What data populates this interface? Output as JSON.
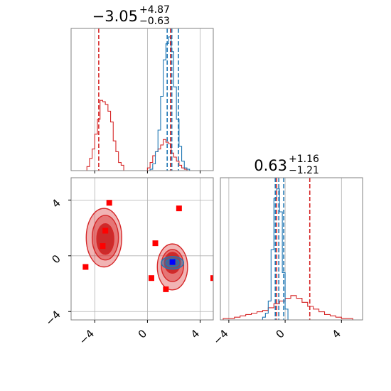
{
  "chart_data": {
    "type": "corner",
    "colors": {
      "blue": "#1f77b4",
      "red": "#d62728",
      "marker_red": "#ff0000",
      "marker_blue": "#0000ff",
      "grid": "#b0b0b0",
      "frame": "#808080"
    },
    "param1": {
      "title": {
        "value": "−3.05",
        "sup": "+4.87",
        "sub": "−0.63"
      },
      "range": [
        -5.8,
        5.0
      ],
      "ticks": [
        -4,
        0,
        4
      ],
      "tick_labels": [
        "−4",
        "0",
        "4"
      ],
      "blue_hist": {
        "edges": [
          0.2,
          0.4,
          0.6,
          0.8,
          1.0,
          1.2,
          1.4,
          1.6,
          1.8,
          2.0,
          2.2,
          2.4,
          2.6,
          2.8,
          3.0,
          3.2
        ],
        "counts": [
          0.01,
          0.05,
          0.14,
          0.3,
          0.55,
          0.82,
          0.94,
          0.99,
          0.88,
          0.62,
          0.38,
          0.18,
          0.07,
          0.02,
          0.01
        ]
      },
      "red_hist": {
        "edges": [
          -4.6,
          -4.4,
          -4.2,
          -4.0,
          -3.8,
          -3.6,
          -3.4,
          -3.2,
          -3.0,
          -2.8,
          -2.6,
          -2.4,
          -2.2,
          -2.0,
          -1.8,
          0.0,
          0.2,
          0.4,
          0.6,
          0.8,
          1.0,
          1.2,
          1.4,
          1.6,
          1.8,
          2.0,
          2.2,
          2.4,
          2.6,
          2.8,
          3.0,
          3.2
        ],
        "counts": [
          0.03,
          0.09,
          0.16,
          0.27,
          0.38,
          0.52,
          0.51,
          0.49,
          0.44,
          0.36,
          0.22,
          0.14,
          0.06,
          0.04,
          0.0,
          0.02,
          0.06,
          0.11,
          0.14,
          0.16,
          0.19,
          0.23,
          0.21,
          0.2,
          0.13,
          0.1,
          0.07,
          0.04,
          0.02,
          0.01,
          0.0
        ]
      },
      "blue_quantiles": [
        1.5,
        1.85,
        2.35
      ],
      "red_quantiles": [
        -3.7,
        1.75
      ]
    },
    "param2": {
      "title": {
        "value": "0.63",
        "sup": "+1.16",
        "sub": "−1.21"
      },
      "range": [
        -4.6,
        5.5
      ],
      "ticks": [
        -4,
        0,
        4
      ],
      "tick_labels": [
        "−4",
        "0",
        "4"
      ],
      "blue_hist": {
        "edges": [
          -1.6,
          -1.4,
          -1.2,
          -1.0,
          -0.8,
          -0.6,
          -0.4,
          -0.2,
          0.0,
          0.2
        ],
        "counts": [
          0.02,
          0.05,
          0.14,
          0.52,
          0.9,
          0.97,
          0.8,
          0.35,
          0.08
        ]
      },
      "red_hist": {
        "edges": [
          -4.4,
          -4.0,
          -3.6,
          -3.2,
          -2.8,
          -2.4,
          -2.0,
          -1.6,
          -1.2,
          -0.8,
          -0.4,
          0.0,
          0.4,
          0.8,
          1.2,
          1.6,
          2.0,
          2.4,
          2.8,
          3.2,
          3.6,
          4.0,
          4.4,
          4.8
        ],
        "counts": [
          0.01,
          0.01,
          0.02,
          0.03,
          0.04,
          0.05,
          0.06,
          0.07,
          0.09,
          0.12,
          0.14,
          0.16,
          0.18,
          0.16,
          0.13,
          0.1,
          0.08,
          0.06,
          0.04,
          0.03,
          0.02,
          0.01,
          0.01
        ]
      },
      "blue_quantiles": [
        -0.7,
        -0.45,
        -0.1
      ],
      "red_quantiles": [
        -0.6,
        1.75
      ]
    },
    "joint": {
      "xrange": [
        -5.8,
        5.0
      ],
      "yrange": [
        -4.6,
        5.6
      ],
      "ticks": [
        -4,
        0,
        4
      ],
      "tick_labels": [
        "−4",
        "0",
        "4"
      ],
      "red_contours": [
        {
          "cx": -3.3,
          "cy": 1.3,
          "rx": 1.35,
          "ry": 2.1,
          "level": "outer"
        },
        {
          "cx": -3.2,
          "cy": 1.3,
          "rx": 1.0,
          "ry": 1.6,
          "level": "mid"
        },
        {
          "cx": -3.2,
          "cy": 1.2,
          "rx": 0.65,
          "ry": 1.1,
          "level": "inner"
        },
        {
          "cx": 1.9,
          "cy": -0.8,
          "rx": 1.15,
          "ry": 1.65,
          "level": "outer"
        },
        {
          "cx": 1.9,
          "cy": -0.7,
          "rx": 0.85,
          "ry": 1.15,
          "level": "mid"
        },
        {
          "cx": 1.9,
          "cy": -0.5,
          "rx": 0.6,
          "ry": 0.75,
          "level": "inner"
        }
      ],
      "blue_contours": [
        {
          "cx": 1.9,
          "cy": -0.5,
          "rx": 0.85,
          "ry": 0.45
        },
        {
          "cx": 1.9,
          "cy": -0.5,
          "rx": 0.5,
          "ry": 0.28
        }
      ],
      "red_points": [
        {
          "x": -2.9,
          "y": 3.8
        },
        {
          "x": -3.2,
          "y": 1.8
        },
        {
          "x": -3.4,
          "y": 0.7
        },
        {
          "x": -4.7,
          "y": -0.8
        },
        {
          "x": 2.4,
          "y": 3.4
        },
        {
          "x": 0.6,
          "y": 0.9
        },
        {
          "x": 0.3,
          "y": -1.6
        },
        {
          "x": 1.4,
          "y": -2.4
        },
        {
          "x": 5.0,
          "y": -1.6
        }
      ],
      "blue_points": [
        {
          "x": 1.9,
          "y": -0.45
        }
      ]
    }
  }
}
